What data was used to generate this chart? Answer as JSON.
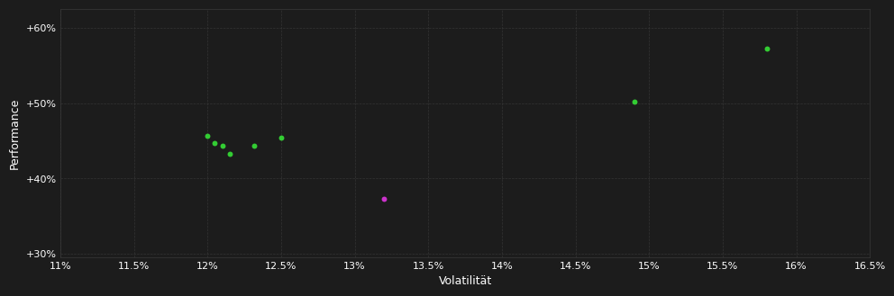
{
  "background_color": "#1c1c1c",
  "plot_bg_color": "#1c1c1c",
  "grid_color": "#3a3a3a",
  "text_color": "#ffffff",
  "xlabel": "Volatilität",
  "ylabel": "Performance",
  "xlim": [
    0.11,
    0.165
  ],
  "ylim": [
    0.295,
    0.625
  ],
  "xticks": [
    0.11,
    0.115,
    0.12,
    0.125,
    0.13,
    0.135,
    0.14,
    0.145,
    0.15,
    0.155,
    0.16,
    0.165
  ],
  "yticks": [
    0.3,
    0.4,
    0.5,
    0.6
  ],
  "ytick_labels": [
    "+30%",
    "+40%",
    "+50%",
    "+60%"
  ],
  "xtick_labels": [
    "11%",
    "11.5%",
    "12%",
    "12.5%",
    "13%",
    "13.5%",
    "14%",
    "14.5%",
    "15%",
    "15.5%",
    "16%",
    "16.5%"
  ],
  "green_points": [
    [
      0.12,
      0.456
    ],
    [
      0.1205,
      0.447
    ],
    [
      0.121,
      0.443
    ],
    [
      0.1215,
      0.433
    ],
    [
      0.1232,
      0.443
    ],
    [
      0.125,
      0.454
    ],
    [
      0.149,
      0.502
    ],
    [
      0.158,
      0.572
    ]
  ],
  "magenta_points": [
    [
      0.132,
      0.373
    ]
  ],
  "green_color": "#33cc33",
  "magenta_color": "#cc33cc",
  "marker_size": 18,
  "font_size_ticks": 8,
  "font_size_labels": 9
}
